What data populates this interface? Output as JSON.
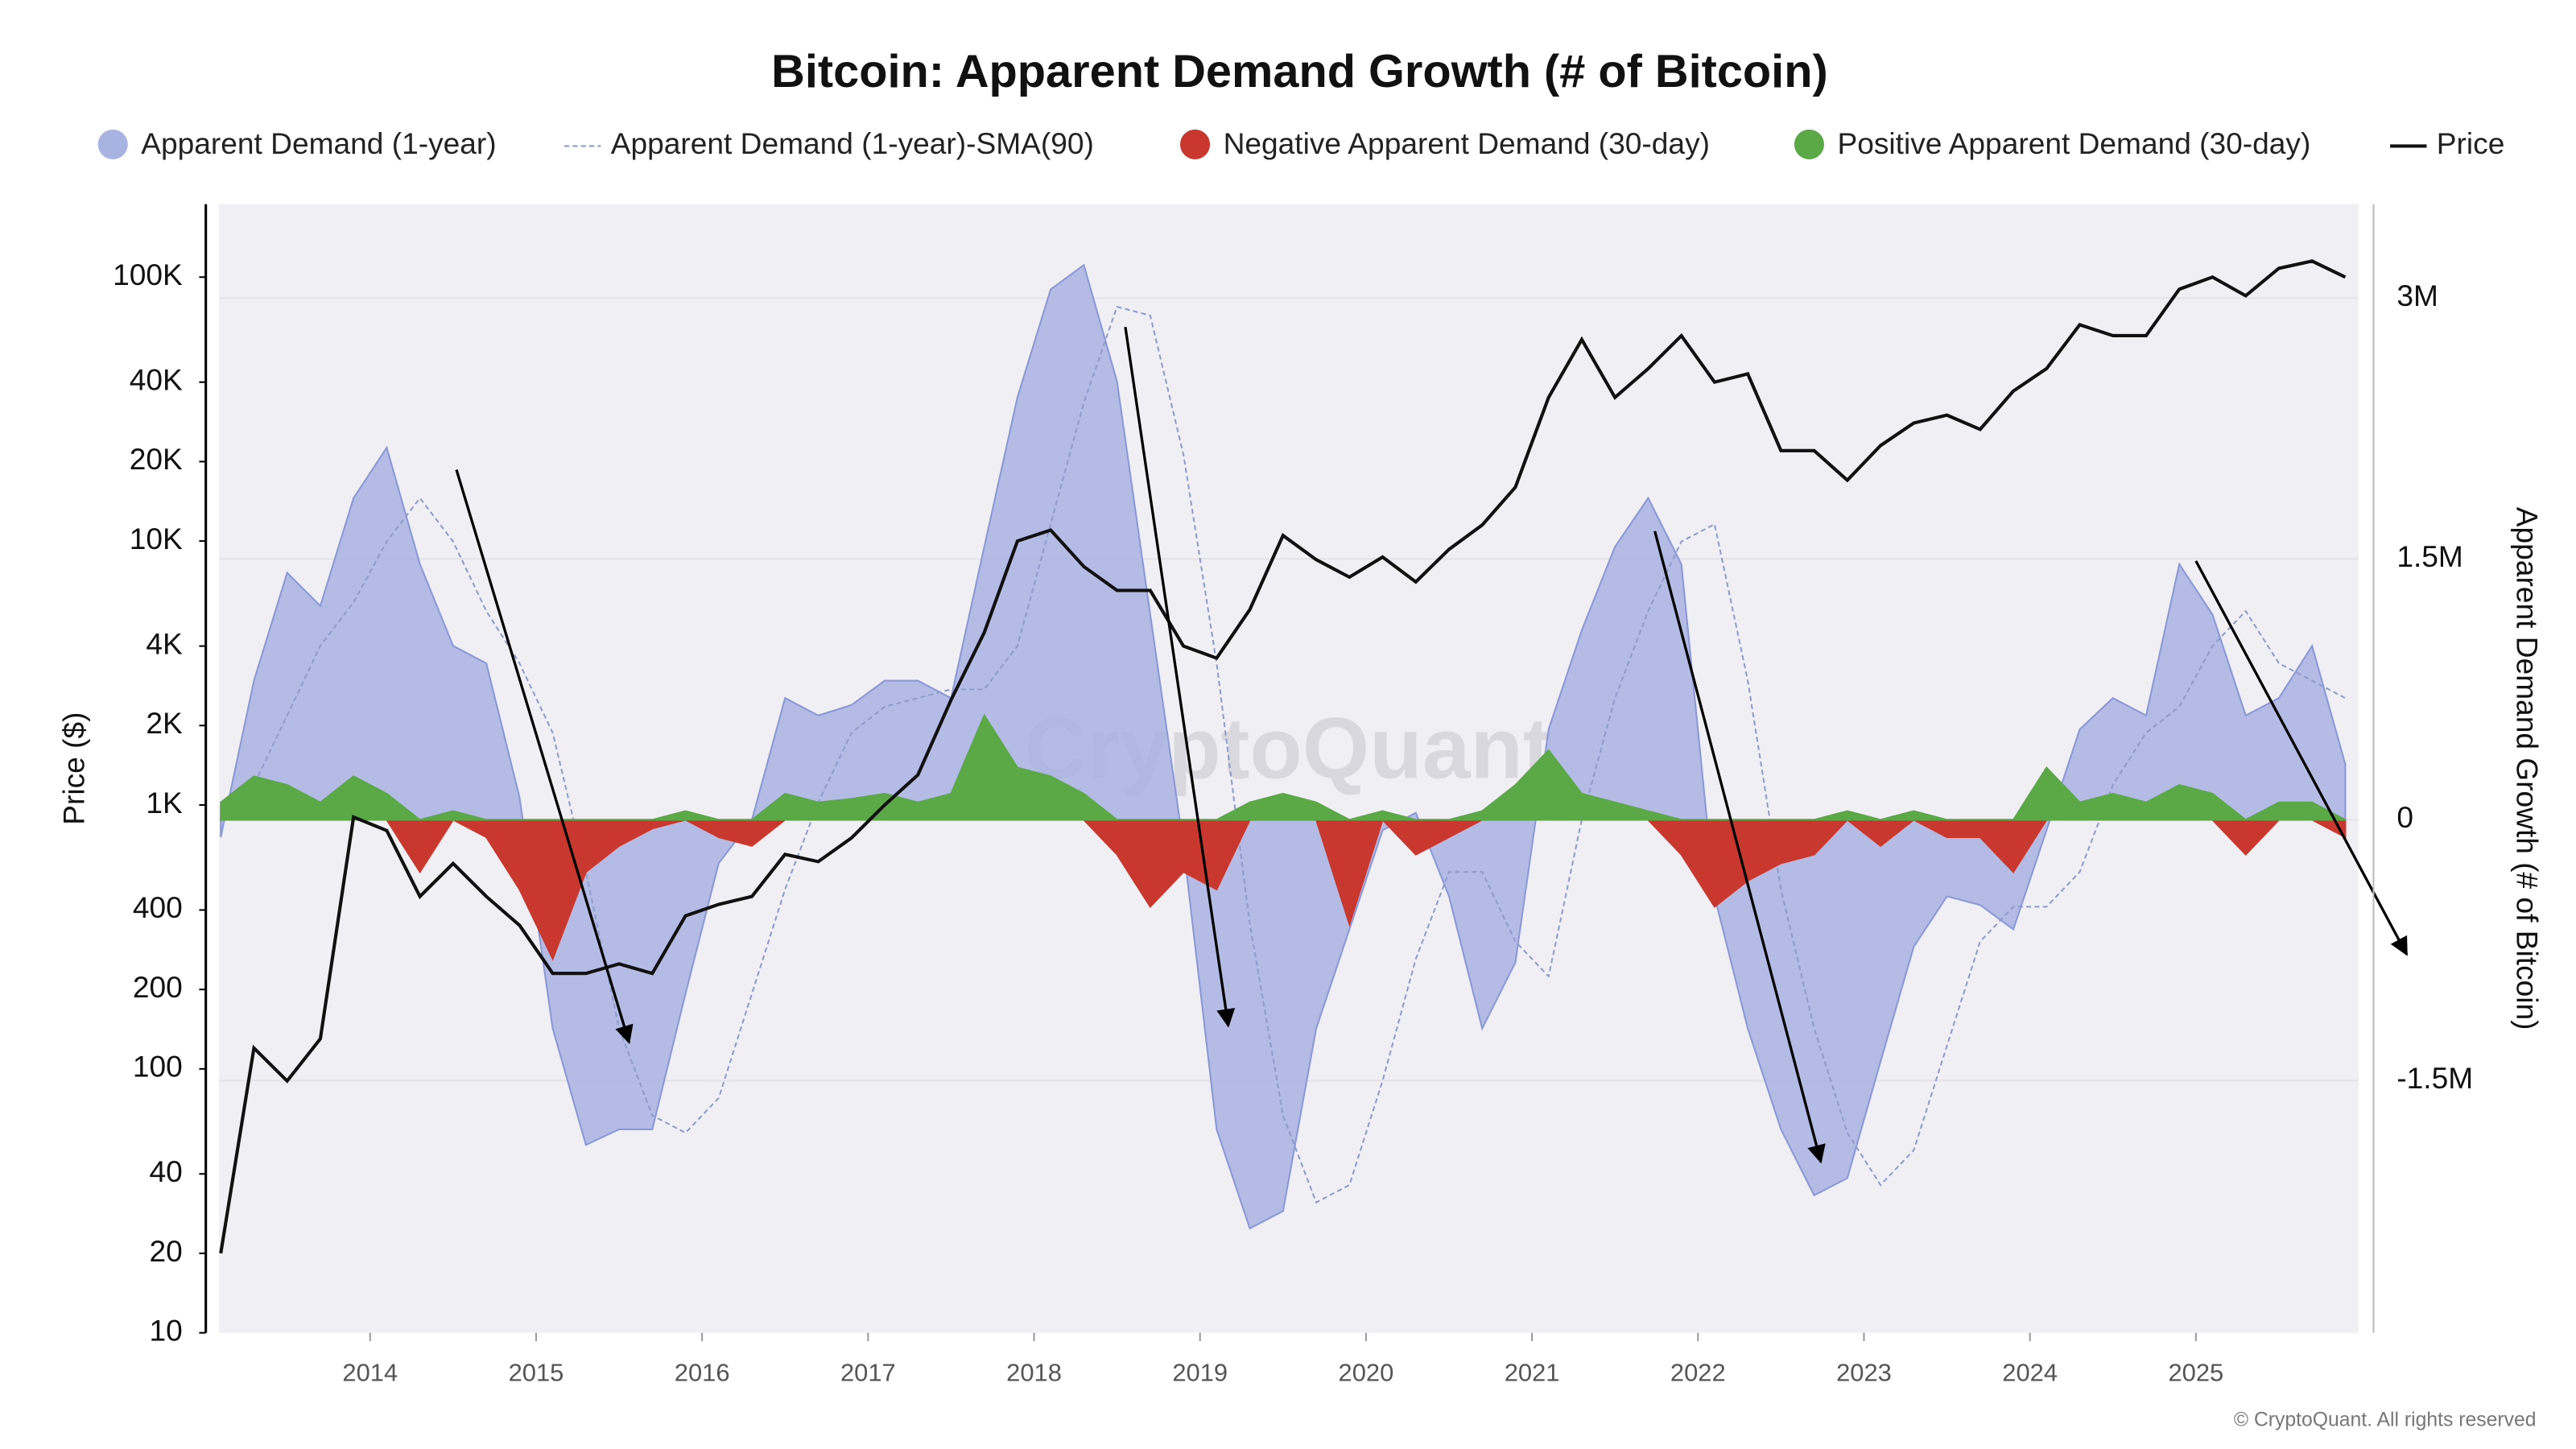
{
  "chart_data": {
    "type": "line",
    "title": "Bitcoin: Apparent Demand Growth (# of Bitcoin)",
    "y_label": "Price ($)",
    "y2_label": "Apparent Demand Growth (# of Bitcoin)",
    "watermark": "CryptoQuant",
    "footer": "© CryptoQuant. All rights reserved",
    "x": [
      2013.1,
      2013.3,
      2013.5,
      2013.7,
      2013.9,
      2014.1,
      2014.3,
      2014.5,
      2014.7,
      2014.9,
      2015.1,
      2015.3,
      2015.5,
      2015.7,
      2015.9,
      2016.1,
      2016.3,
      2016.5,
      2016.7,
      2016.9,
      2017.1,
      2017.3,
      2017.5,
      2017.7,
      2017.9,
      2018.1,
      2018.3,
      2018.5,
      2018.7,
      2018.9,
      2019.1,
      2019.3,
      2019.5,
      2019.7,
      2019.9,
      2020.1,
      2020.3,
      2020.5,
      2020.7,
      2020.9,
      2021.1,
      2021.3,
      2021.5,
      2021.7,
      2021.9,
      2022.1,
      2022.3,
      2022.5,
      2022.7,
      2022.9,
      2023.1,
      2023.3,
      2023.5,
      2023.7,
      2023.9,
      2024.1,
      2024.3,
      2024.5,
      2024.7,
      2024.9,
      2025.1,
      2025.3,
      2025.5,
      2025.7,
      2025.9
    ],
    "xlim": [
      2013.09,
      2025.98
    ],
    "xticks": [
      2014,
      2015,
      2016,
      2017,
      2018,
      2019,
      2020,
      2021,
      2022,
      2023,
      2024,
      2025
    ],
    "ylog": true,
    "ylim": [
      10,
      189000
    ],
    "yticks": [
      10,
      20,
      40,
      100,
      200,
      400,
      {
        "value": 1000,
        "label": "1K"
      },
      {
        "value": 2000,
        "label": "2K"
      },
      {
        "value": 4000,
        "label": "4K"
      },
      {
        "value": 10000,
        "label": "10K"
      },
      {
        "value": 20000,
        "label": "20K"
      },
      {
        "value": 40000,
        "label": "40K"
      },
      {
        "value": 100000,
        "label": "100K"
      }
    ],
    "y2lim": [
      -2950000,
      3540000
    ],
    "y2ticks": [
      {
        "value": 3000000,
        "label": "3M"
      },
      {
        "value": 1500000,
        "label": "1.5M"
      },
      0,
      {
        "value": -1500000,
        "label": "-1.5M"
      }
    ],
    "grid": true,
    "series": [
      {
        "name": "Apparent Demand (1-year)",
        "color": "#a9b3e2",
        "mark": "area",
        "axis": "y2",
        "values": [
          -100000,
          800000,
          1420000,
          1230000,
          1850000,
          2140000,
          1470000,
          1000000,
          900000,
          130000,
          -1200000,
          -1870000,
          -1780000,
          -1780000,
          -1000000,
          -250000,
          0,
          700000,
          600000,
          660000,
          800000,
          800000,
          700000,
          1570000,
          2430000,
          3050000,
          3190000,
          2520000,
          1180000,
          -150000,
          -1780000,
          -2350000,
          -2250000,
          -1200000,
          -630000,
          -60000,
          40000,
          -440000,
          -1200000,
          -820000,
          520000,
          1090000,
          1570000,
          1850000,
          1470000,
          -440000,
          -1200000,
          -1780000,
          -2160000,
          -2060000,
          -1390000,
          -730000,
          -440000,
          -490000,
          -630000,
          -60000,
          520000,
          700000,
          600000,
          1470000,
          1180000,
          600000,
          700000,
          1000000,
          320000
        ]
      },
      {
        "name": "Apparent Demand (1-year)-SMA(90)",
        "color": "#8e9cc9",
        "mark": "line",
        "dashed": true,
        "axis": "y2",
        "values": [
          0,
          200000,
          600000,
          1000000,
          1250000,
          1600000,
          1850000,
          1600000,
          1200000,
          900000,
          500000,
          -300000,
          -1200000,
          -1700000,
          -1800000,
          -1600000,
          -1000000,
          -400000,
          100000,
          500000,
          650000,
          700000,
          750000,
          750000,
          1000000,
          1700000,
          2400000,
          2950000,
          2900000,
          2100000,
          900000,
          -600000,
          -1700000,
          -2200000,
          -2100000,
          -1500000,
          -800000,
          -300000,
          -300000,
          -700000,
          -900000,
          0,
          700000,
          1200000,
          1600000,
          1700000,
          800000,
          -400000,
          -1200000,
          -1800000,
          -2100000,
          -1900000,
          -1300000,
          -700000,
          -500000,
          -500000,
          -300000,
          200000,
          500000,
          650000,
          1000000,
          1200000,
          900000,
          800000,
          700000
        ]
      },
      {
        "name": "Negative Apparent Demand (30-day)",
        "color": "#c8382f",
        "mark": "area",
        "axis": "y2",
        "values": [
          0,
          0,
          0,
          0,
          0,
          0,
          -300000,
          0,
          -100000,
          -400000,
          -800000,
          -300000,
          -150000,
          -50000,
          0,
          -100000,
          -150000,
          0,
          0,
          0,
          0,
          0,
          0,
          0,
          0,
          0,
          0,
          -200000,
          -500000,
          -300000,
          -400000,
          0,
          0,
          0,
          -600000,
          0,
          -200000,
          -100000,
          0,
          0,
          0,
          0,
          0,
          0,
          -200000,
          -500000,
          -350000,
          -250000,
          -200000,
          0,
          -150000,
          0,
          -100000,
          -100000,
          -300000,
          0,
          0,
          0,
          0,
          0,
          0,
          -200000,
          0,
          0,
          -100000
        ]
      },
      {
        "name": "Positive Apparent Demand (30-day)",
        "color": "#5aa846",
        "mark": "area",
        "axis": "y2",
        "values": [
          100000,
          250000,
          200000,
          100000,
          250000,
          150000,
          0,
          50000,
          0,
          0,
          0,
          0,
          0,
          0,
          50000,
          0,
          0,
          150000,
          100000,
          120000,
          150000,
          100000,
          150000,
          600000,
          300000,
          250000,
          150000,
          0,
          0,
          0,
          0,
          100000,
          150000,
          100000,
          0,
          50000,
          0,
          0,
          50000,
          200000,
          400000,
          150000,
          100000,
          50000,
          0,
          0,
          0,
          0,
          0,
          50000,
          0,
          50000,
          0,
          0,
          0,
          300000,
          100000,
          150000,
          100000,
          200000,
          150000,
          0,
          100000,
          100000,
          0
        ]
      },
      {
        "name": "Price",
        "color": "#111111",
        "mark": "line",
        "axis": "y",
        "values": [
          20,
          120,
          90,
          130,
          900,
          800,
          450,
          600,
          450,
          350,
          230,
          230,
          250,
          230,
          380,
          420,
          450,
          650,
          610,
          750,
          1000,
          1300,
          2500,
          4500,
          10000,
          11000,
          8000,
          6500,
          6500,
          4000,
          3600,
          5500,
          10500,
          8500,
          7300,
          8700,
          7000,
          9300,
          11500,
          16000,
          35000,
          58000,
          35000,
          45000,
          60000,
          40000,
          43000,
          22000,
          22000,
          17000,
          23000,
          28000,
          30000,
          26500,
          37000,
          45000,
          66000,
          60000,
          60000,
          90000,
          100000,
          85000,
          108000,
          115000,
          100000
        ]
      }
    ]
  }
}
